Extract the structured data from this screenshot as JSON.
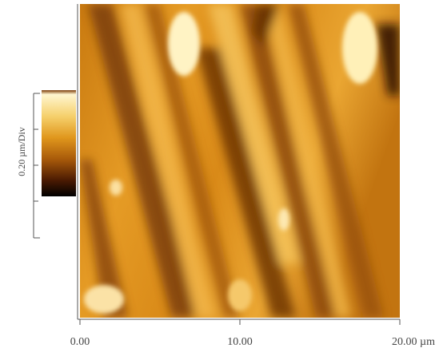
{
  "image": {
    "x_axis": {
      "ticks": [
        "0.00",
        "10.00",
        "20.00 µm"
      ]
    },
    "scale_bar": {
      "label": "0.20 µm/Div"
    }
  }
}
